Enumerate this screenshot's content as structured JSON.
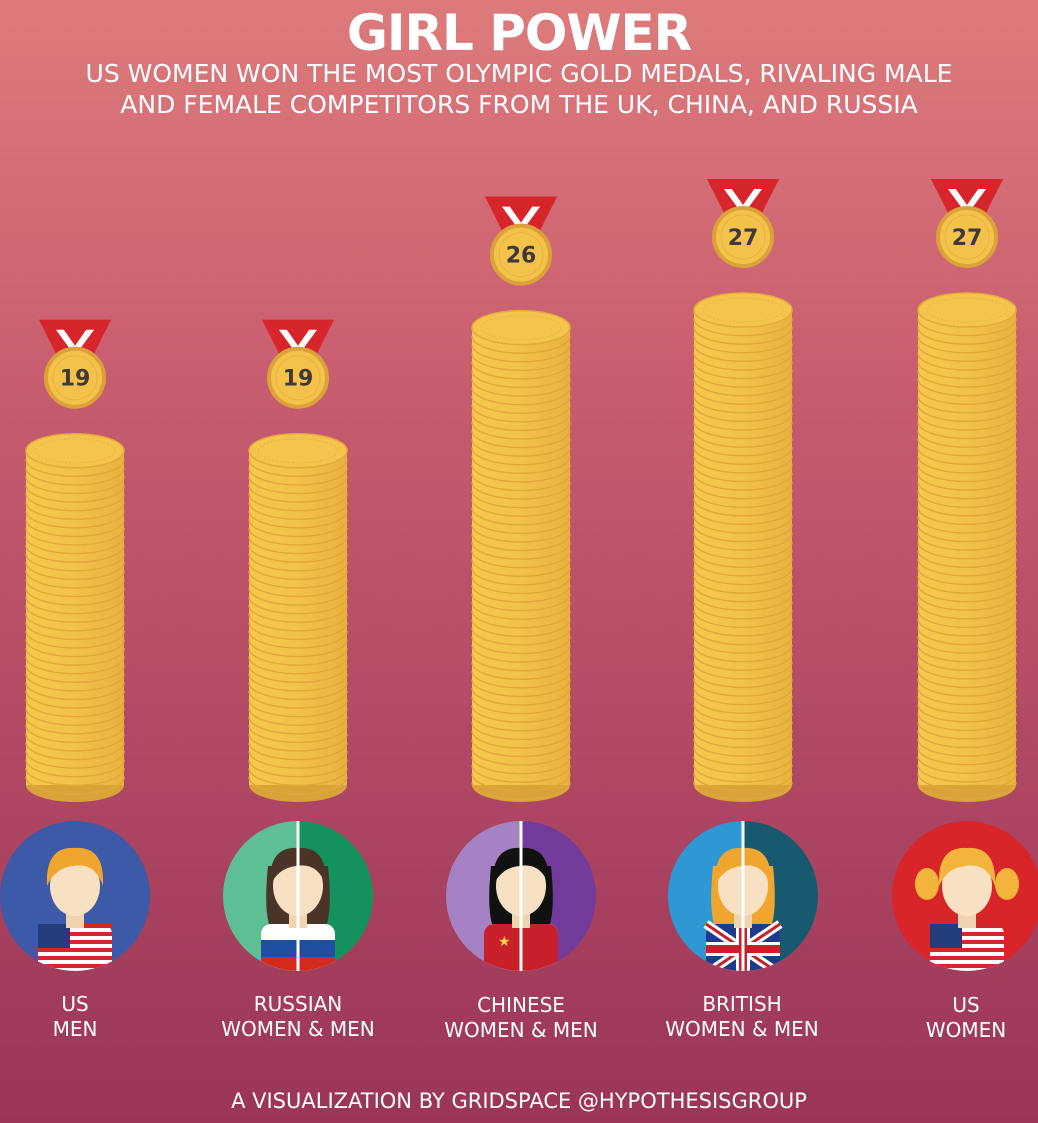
{
  "title": "GIRL POWER",
  "subtitle": {
    "line1": "US WOMEN WON THE MOST OLYMPIC GOLD MEDALS, RIVALING MALE",
    "line2": "AND FEMALE COMPETITORS FROM THE UK, CHINA, AND RUSSIA"
  },
  "chart_data": {
    "type": "bar",
    "title": "GIRL POWER",
    "categories": [
      "US MEN",
      "RUSSIAN WOMEN & MEN",
      "CHINESE WOMEN & MEN",
      "BRITISH WOMEN & MEN",
      "US WOMEN"
    ],
    "values": [
      19,
      19,
      26,
      27,
      27
    ],
    "data_labels": [
      "19",
      "19",
      "26",
      "27",
      "27"
    ],
    "ylabel": "",
    "xlabel": "",
    "ylim": [
      0,
      27
    ],
    "grid": false,
    "legend": "none"
  },
  "labels": [
    {
      "line1": "US",
      "line2": "MEN"
    },
    {
      "line1": "RUSSIAN",
      "line2": "WOMEN & MEN"
    },
    {
      "line1": "CHINESE",
      "line2": "WOMEN & MEN"
    },
    {
      "line1": "BRITISH",
      "line2": "WOMEN & MEN"
    },
    {
      "line1": "US",
      "line2": "WOMEN"
    }
  ],
  "avatars": [
    {
      "icon": "us-man-avatar-icon",
      "flag": "us-flag-icon",
      "bg": "#3d5aa8"
    },
    {
      "icon": "russian-avatar-icon",
      "flag": "russia-flag-icon",
      "bg_left": "#5dbf93",
      "bg_right": "#13925e"
    },
    {
      "icon": "chinese-avatar-icon",
      "flag": "china-flag-icon",
      "bg_left": "#a582c3",
      "bg_right": "#733b9b"
    },
    {
      "icon": "british-avatar-icon",
      "flag": "uk-flag-icon",
      "bg_left": "#2e98d4",
      "bg_right": "#17596e"
    },
    {
      "icon": "us-woman-avatar-icon",
      "flag": "us-flag-icon",
      "bg": "#d8252a"
    }
  ],
  "colors": {
    "coin": "#f2c14a",
    "coin_edge": "#d9a33a",
    "ribbon_red": "#d7262b",
    "ribbon_white": "#ffffff"
  },
  "credit": "A VISUALIZATION BY GRIDSPACE @HYPOTHESISGROUP"
}
